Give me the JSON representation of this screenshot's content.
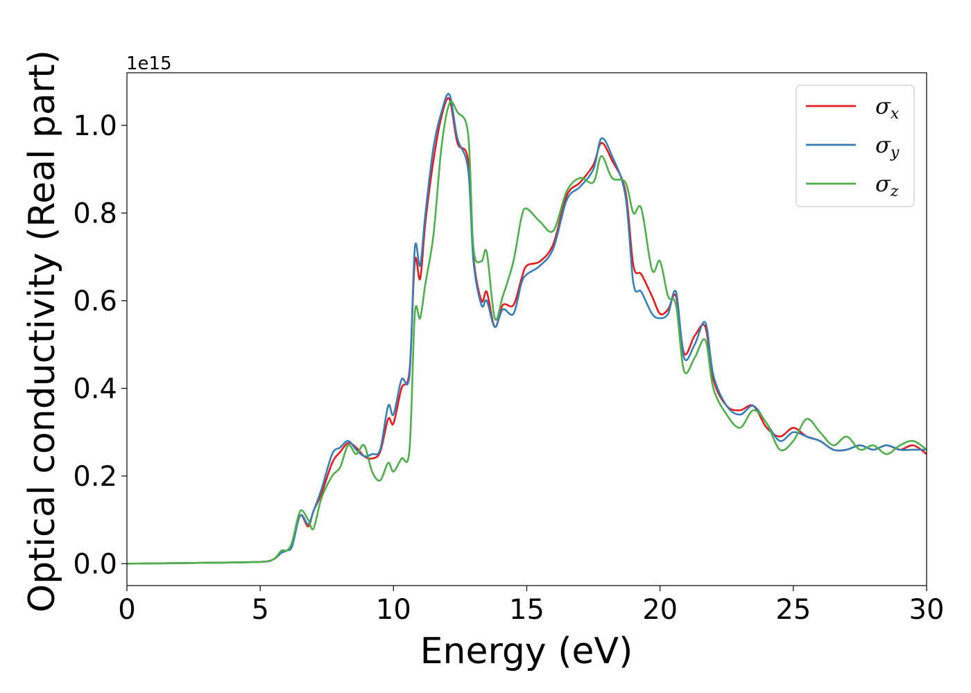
{
  "chart_data": {
    "type": "line",
    "xlabel": "Energy (eV)",
    "ylabel": "Optical conductivity (Real part)",
    "y_offset_label": "1e15",
    "xlim": [
      0,
      30
    ],
    "ylim": [
      -0.05,
      1.12
    ],
    "xticks": [
      0,
      5,
      10,
      15,
      20,
      25,
      30
    ],
    "xtick_labels": [
      "0",
      "5",
      "10",
      "15",
      "20",
      "25",
      "30"
    ],
    "yticks": [
      0.0,
      0.2,
      0.4,
      0.6,
      0.8,
      1.0
    ],
    "ytick_labels": [
      "0.0",
      "0.2",
      "0.4",
      "0.6",
      "0.8",
      "1.0"
    ],
    "grid": false,
    "legend_position": "top-right",
    "series": [
      {
        "name": "σx",
        "legend_base": "σ",
        "legend_sub": "x",
        "color": "#e41a1c",
        "x": [
          0,
          3,
          5,
          5.5,
          5.8,
          6,
          6.2,
          6.5,
          6.8,
          7,
          7.3,
          7.7,
          8,
          8.3,
          8.6,
          8.9,
          9.2,
          9.5,
          9.8,
          10,
          10.3,
          10.6,
          10.8,
          11,
          11.2,
          11.5,
          11.8,
          12.1,
          12.4,
          12.8,
          13,
          13.3,
          13.5,
          13.8,
          14.1,
          14.5,
          14.8,
          15,
          15.5,
          16,
          16.5,
          17,
          17.5,
          17.8,
          18.2,
          18.7,
          19,
          19.3,
          19.7,
          20,
          20.3,
          20.6,
          20.9,
          21.3,
          21.7,
          22,
          22.5,
          23,
          23.5,
          24,
          24.5,
          25,
          25.5,
          26,
          26.5,
          27,
          27.5,
          28,
          28.5,
          29,
          29.5,
          30
        ],
        "y": [
          0,
          0.002,
          0.004,
          0.01,
          0.025,
          0.03,
          0.045,
          0.11,
          0.085,
          0.12,
          0.16,
          0.23,
          0.255,
          0.275,
          0.265,
          0.245,
          0.24,
          0.255,
          0.33,
          0.32,
          0.4,
          0.44,
          0.69,
          0.65,
          0.78,
          0.92,
          1.02,
          1.06,
          0.96,
          0.92,
          0.7,
          0.6,
          0.62,
          0.54,
          0.59,
          0.59,
          0.65,
          0.68,
          0.69,
          0.73,
          0.84,
          0.87,
          0.91,
          0.96,
          0.92,
          0.85,
          0.68,
          0.66,
          0.61,
          0.57,
          0.58,
          0.61,
          0.48,
          0.52,
          0.54,
          0.42,
          0.36,
          0.35,
          0.36,
          0.31,
          0.29,
          0.31,
          0.29,
          0.28,
          0.26,
          0.26,
          0.27,
          0.26,
          0.27,
          0.26,
          0.27,
          0.25
        ]
      },
      {
        "name": "σy",
        "legend_base": "σ",
        "legend_sub": "y",
        "color": "#377eb8",
        "x": [
          0,
          3,
          5,
          5.5,
          5.8,
          6,
          6.2,
          6.5,
          6.8,
          7,
          7.3,
          7.7,
          8,
          8.3,
          8.6,
          8.9,
          9.2,
          9.5,
          9.8,
          10,
          10.3,
          10.6,
          10.8,
          11,
          11.2,
          11.5,
          11.8,
          12.1,
          12.4,
          12.8,
          13,
          13.3,
          13.5,
          13.8,
          14.1,
          14.5,
          14.8,
          15,
          15.5,
          16,
          16.5,
          17,
          17.5,
          17.8,
          18.2,
          18.7,
          19,
          19.3,
          19.7,
          20,
          20.3,
          20.6,
          20.9,
          21.3,
          21.7,
          22,
          22.5,
          23,
          23.5,
          24,
          24.5,
          25,
          25.5,
          26,
          26.5,
          27,
          27.5,
          28,
          28.5,
          29,
          29.5,
          30
        ],
        "y": [
          0,
          0.002,
          0.004,
          0.01,
          0.025,
          0.03,
          0.04,
          0.11,
          0.09,
          0.12,
          0.17,
          0.25,
          0.265,
          0.28,
          0.26,
          0.245,
          0.25,
          0.26,
          0.36,
          0.34,
          0.42,
          0.43,
          0.72,
          0.68,
          0.8,
          0.95,
          1.03,
          1.07,
          0.97,
          0.9,
          0.69,
          0.59,
          0.6,
          0.54,
          0.58,
          0.57,
          0.64,
          0.66,
          0.68,
          0.72,
          0.83,
          0.86,
          0.9,
          0.97,
          0.93,
          0.84,
          0.64,
          0.62,
          0.57,
          0.56,
          0.57,
          0.62,
          0.47,
          0.5,
          0.55,
          0.43,
          0.36,
          0.34,
          0.36,
          0.32,
          0.28,
          0.3,
          0.29,
          0.28,
          0.26,
          0.26,
          0.27,
          0.26,
          0.27,
          0.26,
          0.26,
          0.26
        ]
      },
      {
        "name": "σz",
        "legend_base": "σ",
        "legend_sub": "z",
        "color": "#4daf4a",
        "x": [
          0,
          3,
          5,
          5.5,
          5.8,
          6,
          6.2,
          6.5,
          6.8,
          7,
          7.3,
          7.7,
          8,
          8.3,
          8.6,
          8.9,
          9.2,
          9.5,
          9.8,
          10,
          10.3,
          10.6,
          10.8,
          11,
          11.2,
          11.5,
          11.8,
          12.1,
          12.4,
          12.8,
          13,
          13.3,
          13.5,
          13.8,
          14.1,
          14.5,
          14.8,
          15,
          15.5,
          16,
          16.5,
          17,
          17.5,
          17.8,
          18.2,
          18.7,
          19,
          19.3,
          19.7,
          20,
          20.3,
          20.6,
          20.9,
          21.3,
          21.7,
          22,
          22.5,
          23,
          23.5,
          24,
          24.5,
          25,
          25.5,
          26,
          26.5,
          27,
          27.5,
          28,
          28.5,
          29,
          29.5,
          30
        ],
        "y": [
          0,
          0.002,
          0.004,
          0.01,
          0.03,
          0.03,
          0.05,
          0.12,
          0.1,
          0.08,
          0.15,
          0.2,
          0.22,
          0.27,
          0.25,
          0.27,
          0.21,
          0.19,
          0.23,
          0.21,
          0.24,
          0.26,
          0.57,
          0.56,
          0.64,
          0.75,
          0.95,
          1.05,
          1.03,
          0.98,
          0.72,
          0.69,
          0.71,
          0.56,
          0.61,
          0.69,
          0.79,
          0.81,
          0.78,
          0.76,
          0.85,
          0.88,
          0.87,
          0.93,
          0.88,
          0.87,
          0.8,
          0.81,
          0.67,
          0.69,
          0.61,
          0.59,
          0.44,
          0.47,
          0.51,
          0.4,
          0.34,
          0.31,
          0.35,
          0.32,
          0.26,
          0.28,
          0.33,
          0.3,
          0.27,
          0.29,
          0.26,
          0.27,
          0.25,
          0.27,
          0.28,
          0.26
        ]
      }
    ]
  }
}
